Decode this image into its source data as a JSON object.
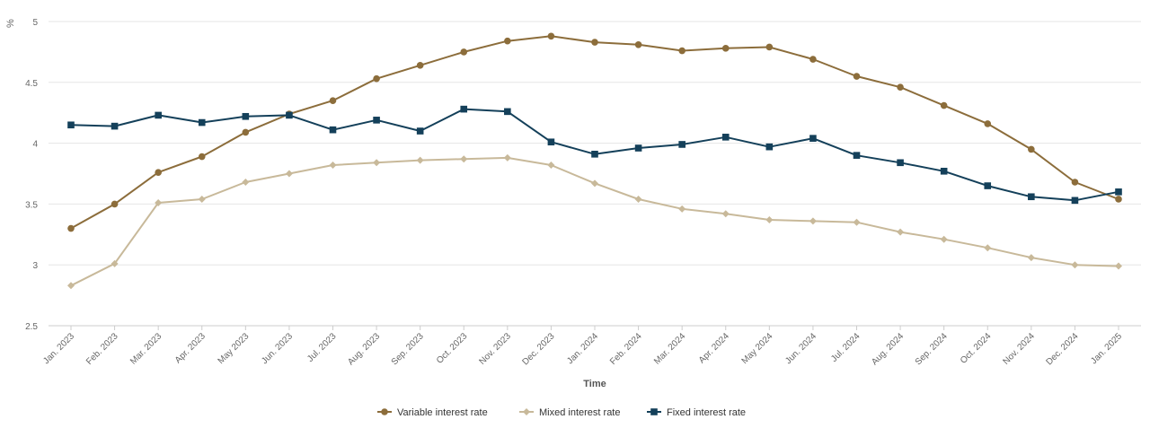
{
  "chart_data": {
    "type": "line",
    "title": "",
    "xlabel": "Time",
    "ylabel": "%",
    "ylim": [
      2.5,
      5
    ],
    "yticks": [
      "2.5",
      "3",
      "3.5",
      "4",
      "4.5",
      "5"
    ],
    "grid": "horizontal",
    "legend_position": "bottom-center",
    "categories": [
      "Jan. 2023",
      "Feb. 2023",
      "Mar. 2023",
      "Apr. 2023",
      "May 2023",
      "Jun. 2023",
      "Jul. 2023",
      "Aug. 2023",
      "Sep. 2023",
      "Oct. 2023",
      "Nov. 2023",
      "Dec. 2023",
      "Jan. 2024",
      "Feb. 2024",
      "Mar. 2024",
      "Apr. 2024",
      "May 2024",
      "Jun. 2024",
      "Jul. 2024",
      "Aug. 2024",
      "Sep. 2024",
      "Oct. 2024",
      "Nov. 2024",
      "Dec. 2024",
      "Jan. 2025"
    ],
    "series": [
      {
        "name": "Variable interest rate",
        "color": "#8c6d3b",
        "marker": "circle",
        "values": [
          3.3,
          3.5,
          3.76,
          3.89,
          4.09,
          4.24,
          4.35,
          4.53,
          4.64,
          4.75,
          4.84,
          4.88,
          4.83,
          4.81,
          4.76,
          4.78,
          4.79,
          4.69,
          4.55,
          4.46,
          4.31,
          4.16,
          3.95,
          3.68,
          3.54
        ]
      },
      {
        "name": "Mixed interest rate",
        "color": "#c8b99a",
        "marker": "diamond",
        "values": [
          2.83,
          3.01,
          3.51,
          3.54,
          3.68,
          3.75,
          3.82,
          3.84,
          3.86,
          3.87,
          3.88,
          3.82,
          3.67,
          3.54,
          3.46,
          3.42,
          3.37,
          3.36,
          3.35,
          3.27,
          3.21,
          3.14,
          3.06,
          3.0,
          2.99
        ]
      },
      {
        "name": "Fixed interest rate",
        "color": "#14405a",
        "marker": "square",
        "values": [
          4.15,
          4.14,
          4.23,
          4.17,
          4.22,
          4.23,
          4.11,
          4.19,
          4.1,
          4.28,
          4.26,
          4.01,
          3.91,
          3.96,
          3.99,
          4.05,
          3.97,
          4.04,
          3.9,
          3.84,
          3.77,
          3.65,
          3.56,
          3.53,
          3.6
        ]
      }
    ]
  }
}
